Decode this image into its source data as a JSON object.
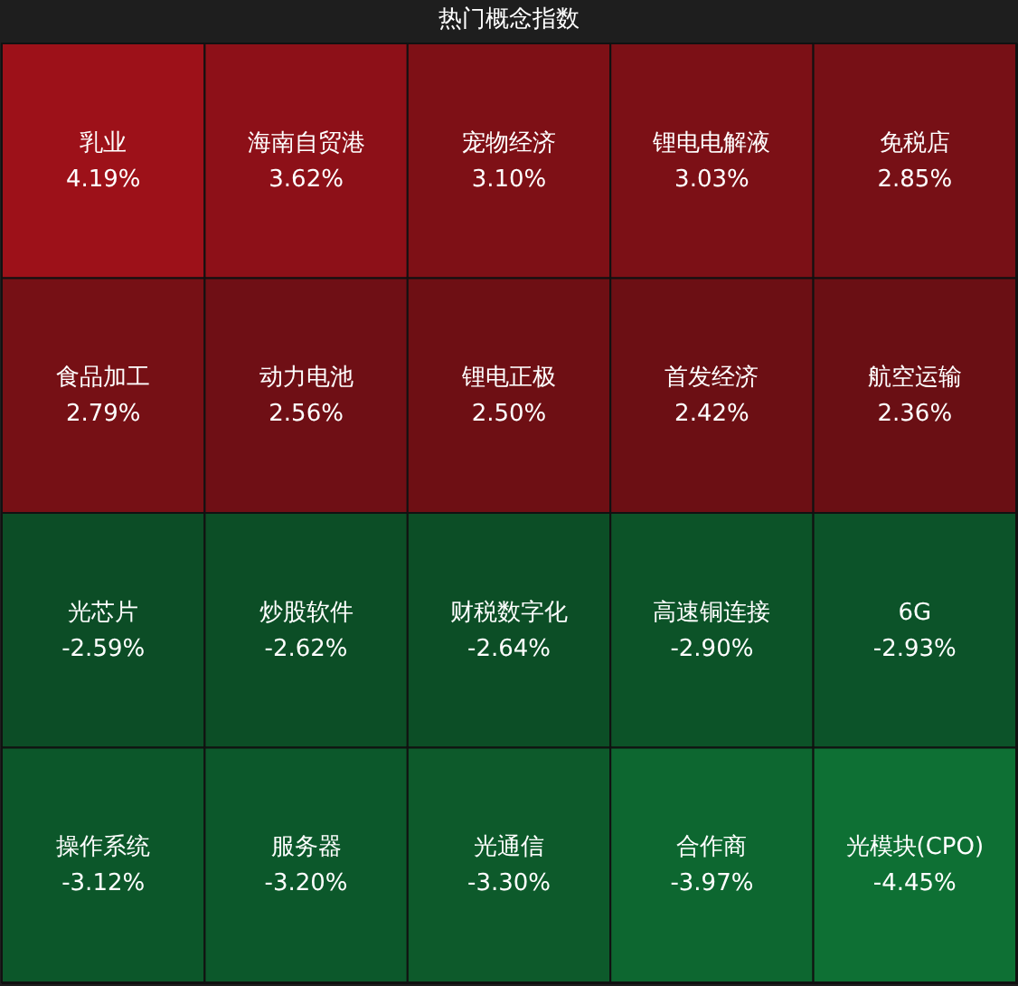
{
  "chart_data": {
    "type": "other",
    "title": "热门概念指数",
    "categories": [
      "乳业",
      "海南自贸港",
      "宠物经济",
      "锂电电解液",
      "免税店",
      "食品加工",
      "动力电池",
      "锂电正极",
      "首发经济",
      "航空运输",
      "光芯片",
      "炒股软件",
      "财税数字化",
      "高速铜连接",
      "6G",
      "操作系统",
      "服务器",
      "光通信",
      "合作商",
      "光模块(CPO)"
    ],
    "values": [
      4.19,
      3.62,
      3.1,
      3.03,
      2.85,
      2.79,
      2.56,
      2.5,
      2.42,
      2.36,
      -2.59,
      -2.62,
      -2.64,
      -2.9,
      -2.93,
      -3.12,
      -3.2,
      -3.3,
      -3.97,
      -4.45
    ],
    "value_labels": [
      "4.19%",
      "3.62%",
      "3.10%",
      "3.03%",
      "2.85%",
      "2.79%",
      "2.56%",
      "2.50%",
      "2.42%",
      "2.36%",
      "-2.59%",
      "-2.62%",
      "-2.64%",
      "-2.90%",
      "-2.93%",
      "-3.12%",
      "-3.20%",
      "-3.30%",
      "-3.97%",
      "-4.45%"
    ]
  }
}
